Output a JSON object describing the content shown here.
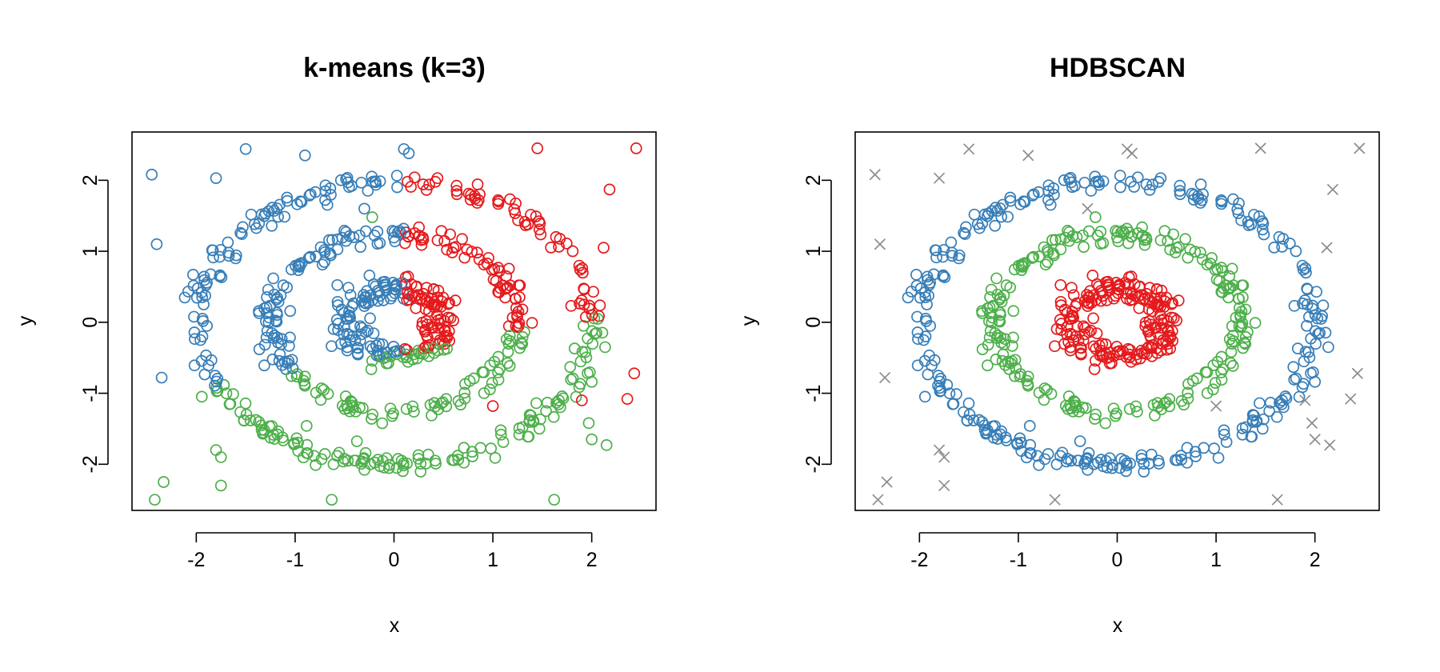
{
  "chart_data": [
    {
      "type": "scatter",
      "title": "k-means (k=3)",
      "xlabel": "x",
      "ylabel": "y",
      "xlim": [
        -2.65,
        2.65
      ],
      "ylim": [
        -2.65,
        2.68
      ],
      "xticks": [
        "-2",
        "-1",
        "0",
        "1",
        "2"
      ],
      "yticks": [
        "-2",
        "-1",
        "0",
        "1",
        "2"
      ],
      "grid": false,
      "legend": "none",
      "marker": "open-circle",
      "colors": {
        "cluster_1": "#377eb8",
        "cluster_2": "#e41a1c",
        "cluster_3": "#4daf4a"
      },
      "rings": [
        {
          "radius": 2.0,
          "points": 300,
          "spread": 0.07
        },
        {
          "radius": 1.25,
          "points": 230,
          "spread": 0.07
        },
        {
          "radius": 0.5,
          "points": 200,
          "spread": 0.1
        }
      ],
      "assignment_rule": "color by region: y < -0.45 + 0.25*x -> cluster_3; else x > 0.1 -> cluster_2; else cluster_1",
      "outliers": [
        {
          "x": -2.45,
          "y": 2.08,
          "c": "cluster_1"
        },
        {
          "x": -1.8,
          "y": 2.03,
          "c": "cluster_1"
        },
        {
          "x": -1.5,
          "y": 2.44,
          "c": "cluster_1"
        },
        {
          "x": -0.9,
          "y": 2.35,
          "c": "cluster_1"
        },
        {
          "x": 0.1,
          "y": 2.44,
          "c": "cluster_1"
        },
        {
          "x": 0.15,
          "y": 2.38,
          "c": "cluster_1"
        },
        {
          "x": -2.4,
          "y": 1.1,
          "c": "cluster_1"
        },
        {
          "x": -2.35,
          "y": -0.78,
          "c": "cluster_1"
        },
        {
          "x": -0.3,
          "y": 1.6,
          "c": "cluster_1"
        },
        {
          "x": 1.45,
          "y": 2.45,
          "c": "cluster_2"
        },
        {
          "x": 2.45,
          "y": 2.45,
          "c": "cluster_2"
        },
        {
          "x": 2.18,
          "y": 1.87,
          "c": "cluster_2"
        },
        {
          "x": 2.12,
          "y": 1.05,
          "c": "cluster_2"
        },
        {
          "x": 2.43,
          "y": -0.72,
          "c": "cluster_2"
        },
        {
          "x": 2.36,
          "y": -1.08,
          "c": "cluster_2"
        },
        {
          "x": 1.9,
          "y": -1.1,
          "c": "cluster_2"
        },
        {
          "x": 1.0,
          "y": -1.18,
          "c": "cluster_2"
        },
        {
          "x": -2.42,
          "y": -2.5,
          "c": "cluster_3"
        },
        {
          "x": -2.33,
          "y": -2.25,
          "c": "cluster_3"
        },
        {
          "x": -1.8,
          "y": -1.8,
          "c": "cluster_3"
        },
        {
          "x": -1.75,
          "y": -1.9,
          "c": "cluster_3"
        },
        {
          "x": -1.75,
          "y": -2.3,
          "c": "cluster_3"
        },
        {
          "x": -0.63,
          "y": -2.5,
          "c": "cluster_3"
        },
        {
          "x": 1.62,
          "y": -2.5,
          "c": "cluster_3"
        },
        {
          "x": 1.97,
          "y": -1.42,
          "c": "cluster_3"
        },
        {
          "x": 2.0,
          "y": -1.65,
          "c": "cluster_3"
        },
        {
          "x": 2.15,
          "y": -1.73,
          "c": "cluster_3"
        },
        {
          "x": -0.22,
          "y": 1.48,
          "c": "cluster_3"
        }
      ]
    },
    {
      "type": "scatter",
      "title": "HDBSCAN",
      "xlabel": "x",
      "ylabel": "y",
      "xlim": [
        -2.65,
        2.65
      ],
      "ylim": [
        -2.65,
        2.68
      ],
      "xticks": [
        "-2",
        "-1",
        "0",
        "1",
        "2"
      ],
      "yticks": [
        "-2",
        "-1",
        "0",
        "1",
        "2"
      ],
      "grid": false,
      "legend": "none",
      "marker": "open-circle",
      "noise_marker": "x",
      "colors": {
        "outer_ring": "#377eb8",
        "middle_ring": "#4daf4a",
        "inner_ring": "#e41a1c",
        "noise": "#8c8c8c"
      },
      "rings": [
        {
          "radius": 2.0,
          "cluster": "outer_ring"
        },
        {
          "radius": 1.25,
          "cluster": "middle_ring"
        },
        {
          "radius": 0.5,
          "cluster": "inner_ring"
        }
      ],
      "noise_points": [
        {
          "x": -2.45,
          "y": 2.08
        },
        {
          "x": -1.8,
          "y": 2.03
        },
        {
          "x": -1.5,
          "y": 2.44
        },
        {
          "x": -0.9,
          "y": 2.35
        },
        {
          "x": 0.1,
          "y": 2.44
        },
        {
          "x": 0.15,
          "y": 2.38
        },
        {
          "x": -2.4,
          "y": 1.1
        },
        {
          "x": -2.35,
          "y": -0.78
        },
        {
          "x": -0.3,
          "y": 1.6
        },
        {
          "x": 1.45,
          "y": 2.45
        },
        {
          "x": 2.45,
          "y": 2.45
        },
        {
          "x": 2.18,
          "y": 1.87
        },
        {
          "x": 2.12,
          "y": 1.05
        },
        {
          "x": 2.43,
          "y": -0.72
        },
        {
          "x": 2.36,
          "y": -1.08
        },
        {
          "x": 1.9,
          "y": -1.1
        },
        {
          "x": 1.0,
          "y": -1.18
        },
        {
          "x": -2.42,
          "y": -2.5
        },
        {
          "x": -2.33,
          "y": -2.25
        },
        {
          "x": -1.8,
          "y": -1.8
        },
        {
          "x": -1.75,
          "y": -1.9
        },
        {
          "x": -1.75,
          "y": -2.3
        },
        {
          "x": -0.63,
          "y": -2.5
        },
        {
          "x": 1.62,
          "y": -2.5
        },
        {
          "x": 1.97,
          "y": -1.42
        },
        {
          "x": 2.0,
          "y": -1.65
        },
        {
          "x": 2.15,
          "y": -1.73
        }
      ],
      "extra_points": [
        {
          "x": -0.22,
          "y": 1.48,
          "c": "middle_ring"
        }
      ]
    }
  ]
}
